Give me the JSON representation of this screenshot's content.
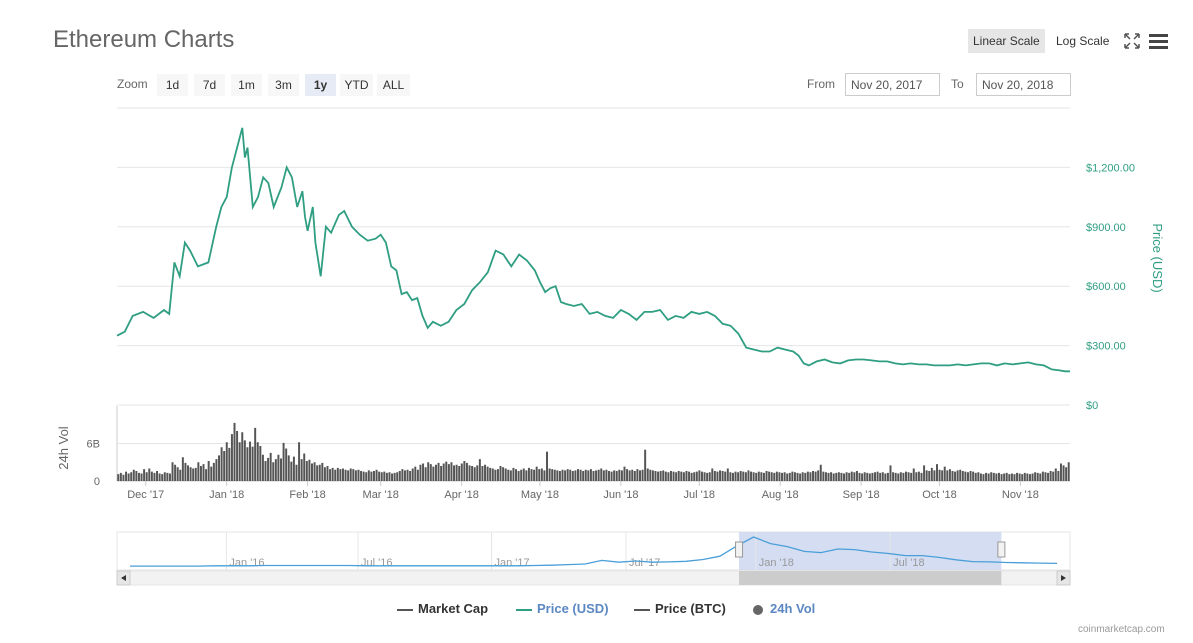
{
  "header": {
    "title": "Ethereum Charts",
    "linear_scale": "Linear Scale",
    "log_scale": "Log Scale",
    "zoom_label": "Zoom",
    "zoom_buttons": [
      "1d",
      "7d",
      "1m",
      "3m",
      "1y",
      "YTD",
      "ALL"
    ],
    "zoom_active": "1y",
    "from_label": "From",
    "from_value": "Nov 20, 2017",
    "to_label": "To",
    "to_value": "Nov 20, 2018"
  },
  "legend": {
    "items": [
      {
        "label": "Market Cap",
        "color": "#555555",
        "kind": "line"
      },
      {
        "label": "Price (USD)",
        "color": "#2f9e82",
        "kind": "line"
      },
      {
        "label": "Price (BTC)",
        "color": "#555555",
        "kind": "line"
      },
      {
        "label": "24h Vol",
        "color": "#555555",
        "kind": "dot"
      }
    ]
  },
  "credit": "coinmarketcap.com",
  "colors": {
    "price_line": "#2f9e82",
    "volume_bar": "#555555",
    "navigator_line": "#4a9fd8",
    "navigator_mask": "#c5d1ee",
    "grid": "#e6e6e6",
    "axis_text": "#666666"
  },
  "chart_data": {
    "type": "line",
    "title": "Ethereum Charts",
    "price_axis": {
      "label": "Price (USD)",
      "ticks": [
        "$0",
        "$300.00",
        "$600.00",
        "$900.00",
        "$1,200.00"
      ],
      "tick_values": [
        0,
        300,
        600,
        900,
        1200
      ],
      "ylim": [
        0,
        1500
      ]
    },
    "volume_axis": {
      "label": "24h Vol",
      "ticks": [
        "0",
        "6B"
      ],
      "tick_values": [
        0,
        6
      ],
      "ylim": [
        0,
        12
      ]
    },
    "x_ticks": [
      "Dec '17",
      "Jan '18",
      "Feb '18",
      "Mar '18",
      "Apr '18",
      "May '18",
      "Jun '18",
      "Jul '18",
      "Aug '18",
      "Sep '18",
      "Oct '18",
      "Nov '18"
    ],
    "x_tick_days": [
      11,
      42,
      73,
      101,
      132,
      162,
      193,
      223,
      254,
      285,
      315,
      346
    ],
    "xlim_days": [
      0,
      365
    ],
    "series": [
      {
        "name": "Price (USD)",
        "x": [
          0,
          3,
          6,
          10,
          14,
          18,
          20,
          22,
          24,
          26,
          28,
          31,
          35,
          38,
          40,
          42,
          44,
          46,
          47,
          48,
          49,
          50,
          52,
          54,
          56,
          58,
          60,
          63,
          65,
          67,
          69,
          71,
          72,
          73,
          75,
          76,
          78,
          80,
          82,
          85,
          87,
          90,
          93,
          96,
          99,
          101,
          103,
          105,
          107,
          109,
          111,
          113,
          115,
          117,
          119,
          121,
          124,
          127,
          130,
          133,
          136,
          139,
          142,
          145,
          148,
          151,
          154,
          157,
          160,
          162,
          164,
          166,
          168,
          170,
          172,
          175,
          178,
          181,
          184,
          187,
          190,
          193,
          196,
          199,
          202,
          205,
          208,
          211,
          214,
          217,
          220,
          223,
          226,
          229,
          232,
          235,
          238,
          241,
          244,
          247,
          250,
          253,
          256,
          259,
          261,
          263,
          265,
          268,
          271,
          274,
          277,
          280,
          283,
          286,
          289,
          292,
          295,
          298,
          301,
          304,
          307,
          310,
          313,
          316,
          319,
          322,
          325,
          328,
          331,
          334,
          337,
          340,
          343,
          346,
          349,
          352,
          355,
          358,
          361,
          363,
          365
        ],
        "values": [
          350,
          370,
          450,
          470,
          440,
          480,
          460,
          720,
          650,
          820,
          780,
          700,
          720,
          900,
          1000,
          1050,
          1200,
          1300,
          1350,
          1400,
          1250,
          1300,
          1000,
          1050,
          1150,
          1120,
          1000,
          1100,
          1200,
          1150,
          1000,
          1080,
          950,
          880,
          1000,
          820,
          650,
          900,
          870,
          960,
          980,
          900,
          860,
          830,
          840,
          860,
          820,
          700,
          680,
          560,
          570,
          530,
          540,
          450,
          390,
          420,
          400,
          420,
          480,
          510,
          580,
          620,
          670,
          780,
          760,
          700,
          760,
          730,
          680,
          620,
          570,
          590,
          600,
          520,
          510,
          500,
          510,
          460,
          470,
          450,
          440,
          480,
          460,
          430,
          470,
          470,
          480,
          430,
          450,
          440,
          470,
          460,
          470,
          450,
          410,
          400,
          360,
          290,
          280,
          270,
          270,
          290,
          280,
          270,
          250,
          210,
          200,
          220,
          230,
          215,
          210,
          225,
          230,
          230,
          225,
          220,
          220,
          210,
          205,
          210,
          205,
          205,
          200,
          200,
          200,
          205,
          200,
          205,
          210,
          210,
          200,
          210,
          205,
          210,
          215,
          205,
          200,
          180,
          175,
          170,
          170
        ],
        "color": "#2f9e82"
      }
    ],
    "volume_billions": [
      1.1,
      1.3,
      1.0,
      1.5,
      1.2,
      1.4,
      1.8,
      1.6,
      1.3,
      1.2,
      1.9,
      1.4,
      2.0,
      1.5,
      1.3,
      1.6,
      1.2,
      1.1,
      1.4,
      1.3,
      1.2,
      3.0,
      2.6,
      2.2,
      1.8,
      3.8,
      2.9,
      2.5,
      2.2,
      2.0,
      2.1,
      3.0,
      2.4,
      2.7,
      1.9,
      3.2,
      2.3,
      2.9,
      3.5,
      4.1,
      5.4,
      4.8,
      6.2,
      5.3,
      7.5,
      9.3,
      8.0,
      6.2,
      7.8,
      6.5,
      5.4,
      6.3,
      5.5,
      8.5,
      6.2,
      5.6,
      4.2,
      3.2,
      3.7,
      4.5,
      3.0,
      3.5,
      4.2,
      3.6,
      6.1,
      5.2,
      4.1,
      3.1,
      3.9,
      2.6,
      6.2,
      3.5,
      4.4,
      3.2,
      3.4,
      2.8,
      3.0,
      2.5,
      2.6,
      2.9,
      2.2,
      2.4,
      1.9,
      2.1,
      1.8,
      2.1,
      1.9,
      2.0,
      1.8,
      1.7,
      2.0,
      1.9,
      1.7,
      1.8,
      1.6,
      1.5,
      1.4,
      1.7,
      1.5,
      1.6,
      1.8,
      1.5,
      1.4,
      1.5,
      1.3,
      1.4,
      1.2,
      1.3,
      1.4,
      1.6,
      1.9,
      1.7,
      1.8,
      1.6,
      2.0,
      2.3,
      1.8,
      2.6,
      2.8,
      2.2,
      3.0,
      2.7,
      2.3,
      2.6,
      2.9,
      2.4,
      2.8,
      3.1,
      2.7,
      3.0,
      2.5,
      2.6,
      2.4,
      2.8,
      3.2,
      2.9,
      2.5,
      2.4,
      2.2,
      2.5,
      3.5,
      2.4,
      2.6,
      2.3,
      2.1,
      2.0,
      1.8,
      1.9,
      2.4,
      2.2,
      2.0,
      1.8,
      1.7,
      2.1,
      1.9,
      1.6,
      1.8,
      2.0,
      1.7,
      2.1,
      1.9,
      1.8,
      2.3,
      1.9,
      2.0,
      1.7,
      4.7,
      2.0,
      1.9,
      1.8,
      1.7,
      1.6,
      1.8,
      1.7,
      1.9,
      1.8,
      1.6,
      1.7,
      1.9,
      1.8,
      1.6,
      1.8,
      1.7,
      1.9,
      1.6,
      1.7,
      1.8,
      2.0,
      1.7,
      1.8,
      1.6,
      1.5,
      1.7,
      1.6,
      1.8,
      1.7,
      2.3,
      1.9,
      1.7,
      1.8,
      1.6,
      1.9,
      1.7,
      1.8,
      5.0,
      2.0,
      1.8,
      1.7,
      1.6,
      1.5,
      1.6,
      1.7,
      1.5,
      1.4,
      1.6,
      1.5,
      1.4,
      1.6,
      1.5,
      1.4,
      1.6,
      1.5,
      1.3,
      1.4,
      1.5,
      1.7,
      1.5,
      1.4,
      1.3,
      1.4,
      2.0,
      1.6,
      1.5,
      1.7,
      1.6,
      1.5,
      2.0,
      1.4,
      1.3,
      1.5,
      1.4,
      1.6,
      1.5,
      1.4,
      1.7,
      1.5,
      1.4,
      1.3,
      1.5,
      1.4,
      1.3,
      1.6,
      1.5,
      1.4,
      1.3,
      1.5,
      1.4,
      1.3,
      1.4,
      1.2,
      1.3,
      1.5,
      1.4,
      1.3,
      1.2,
      1.4,
      1.3,
      1.5,
      1.4,
      1.6,
      1.5,
      1.7,
      2.6,
      1.5,
      1.4,
      1.3,
      1.4,
      1.2,
      1.3,
      1.4,
      1.3,
      1.2,
      1.4,
      1.3,
      1.5,
      1.4,
      1.6,
      1.3,
      1.2,
      1.4,
      1.3,
      1.2,
      1.3,
      1.4,
      1.5,
      1.3,
      1.4,
      1.2,
      1.3,
      2.5,
      1.4,
      1.3,
      1.2,
      1.4,
      1.3,
      1.5,
      1.4,
      1.3,
      2.0,
      1.4,
      1.5,
      1.3,
      2.5,
      1.7,
      1.6,
      2.1,
      1.7,
      2.7,
      1.8,
      1.7,
      2.3,
      1.7,
      1.9,
      1.6,
      1.5,
      1.7,
      1.8,
      1.6,
      1.5,
      1.4,
      1.6,
      1.5,
      1.3,
      1.4,
      1.2,
      1.1,
      1.3,
      1.2,
      1.4,
      1.3,
      1.2,
      1.3,
      1.1,
      1.2,
      1.3,
      1.1,
      1.2,
      1.1,
      1.3,
      1.2,
      1.1,
      1.3,
      1.2,
      1.1,
      1.2,
      1.4,
      1.3,
      1.2,
      1.5,
      1.4,
      1.3,
      1.6,
      1.5,
      2.0,
      1.6,
      2.8,
      2.5,
      2.2,
      3.0
    ],
    "navigator": {
      "x_ticks": [
        "Jan '16",
        "Jul '16",
        "Jan '17",
        "Jul '17",
        "Jan '18",
        "Jul '18"
      ],
      "x_tick_pos": [
        0.104,
        0.246,
        0.39,
        0.535,
        0.675,
        0.82
      ],
      "selection": [
        0.657,
        0.94
      ],
      "values": [
        0.03,
        0.03,
        0.03,
        0.03,
        0.03,
        0.04,
        0.04,
        0.04,
        0.05,
        0.05,
        0.05,
        0.05,
        0.05,
        0.05,
        0.04,
        0.04,
        0.04,
        0.04,
        0.04,
        0.04,
        0.04,
        0.04,
        0.04,
        0.04,
        0.05,
        0.06,
        0.08,
        0.1,
        0.22,
        0.16,
        0.2,
        0.16,
        0.17,
        0.19,
        0.25,
        0.36,
        0.7,
        1.0,
        0.78,
        0.68,
        0.52,
        0.48,
        0.6,
        0.58,
        0.5,
        0.45,
        0.38,
        0.38,
        0.32,
        0.24,
        0.18,
        0.17,
        0.15,
        0.14,
        0.13,
        0.12
      ]
    }
  }
}
